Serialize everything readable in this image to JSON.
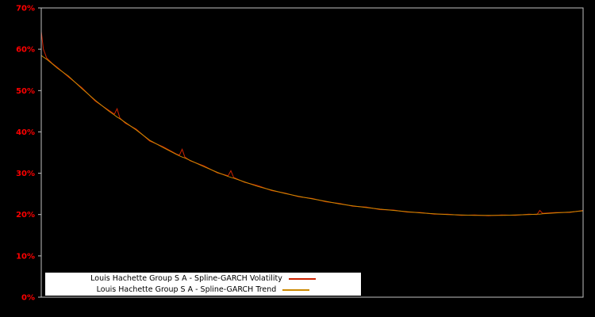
{
  "axis": {
    "yticks": [
      "0%",
      "10%",
      "20%",
      "30%",
      "40%",
      "50%",
      "60%",
      "70%"
    ],
    "tick_color": "#ff0000",
    "border_color": "#c0c0c0"
  },
  "legend": {
    "items": [
      {
        "label": "Louis Hachette Group S A - Spline-GARCH Volatility",
        "color": "#cc2200"
      },
      {
        "label": "Louis Hachette Group S A - Spline-GARCH Trend",
        "color": "#cc8800"
      }
    ]
  },
  "chart_data": {
    "type": "line",
    "title": "",
    "xlabel": "",
    "ylabel": "",
    "ylim": [
      0,
      70
    ],
    "grid": false,
    "legend_position": "bottom-center",
    "background": "#000000",
    "x": [
      0.0,
      0.004,
      0.01,
      0.02,
      0.03,
      0.05,
      0.075,
      0.1,
      0.125,
      0.135,
      0.14,
      0.145,
      0.155,
      0.175,
      0.2,
      0.225,
      0.25,
      0.255,
      0.26,
      0.265,
      0.275,
      0.3,
      0.325,
      0.345,
      0.35,
      0.355,
      0.375,
      0.4,
      0.425,
      0.45,
      0.475,
      0.5,
      0.525,
      0.55,
      0.575,
      0.6,
      0.625,
      0.65,
      0.675,
      0.7,
      0.725,
      0.75,
      0.775,
      0.8,
      0.825,
      0.85,
      0.875,
      0.9,
      0.915,
      0.92,
      0.925,
      0.95,
      0.975,
      1.0
    ],
    "series": [
      {
        "name": "Louis Hachette Group S A - Spline-GARCH Volatility",
        "color": "#cc2200",
        "values": [
          64.3,
          60.0,
          57.9,
          56.6,
          55.6,
          53.3,
          50.7,
          47.4,
          45.2,
          44.3,
          45.6,
          43.4,
          42.1,
          40.7,
          37.8,
          36.4,
          34.6,
          34.4,
          35.8,
          33.9,
          33.0,
          31.8,
          30.1,
          29.4,
          30.6,
          29.0,
          27.8,
          27.0,
          25.8,
          25.2,
          24.3,
          23.9,
          23.1,
          22.7,
          22.0,
          21.8,
          21.2,
          21.1,
          20.6,
          20.5,
          20.1,
          20.1,
          19.8,
          19.9,
          19.7,
          19.9,
          19.8,
          20.1,
          20.0,
          21.0,
          20.3,
          20.5,
          20.5,
          21.0
        ]
      },
      {
        "name": "Louis Hachette Group S A - Spline-GARCH Trend",
        "color": "#cc8800",
        "values": [
          58.5,
          58.1,
          57.6,
          56.5,
          55.4,
          53.5,
          50.5,
          47.6,
          45.0,
          44.1,
          43.6,
          43.2,
          42.3,
          40.5,
          38.0,
          36.2,
          34.5,
          34.2,
          33.9,
          33.7,
          33.1,
          31.6,
          30.2,
          29.2,
          29.0,
          28.8,
          27.9,
          26.8,
          25.9,
          25.1,
          24.4,
          23.8,
          23.2,
          22.6,
          22.1,
          21.7,
          21.3,
          21.0,
          20.7,
          20.4,
          20.2,
          20.0,
          19.9,
          19.8,
          19.8,
          19.8,
          19.9,
          20.0,
          20.1,
          20.1,
          20.2,
          20.4,
          20.6,
          20.9
        ]
      }
    ]
  }
}
